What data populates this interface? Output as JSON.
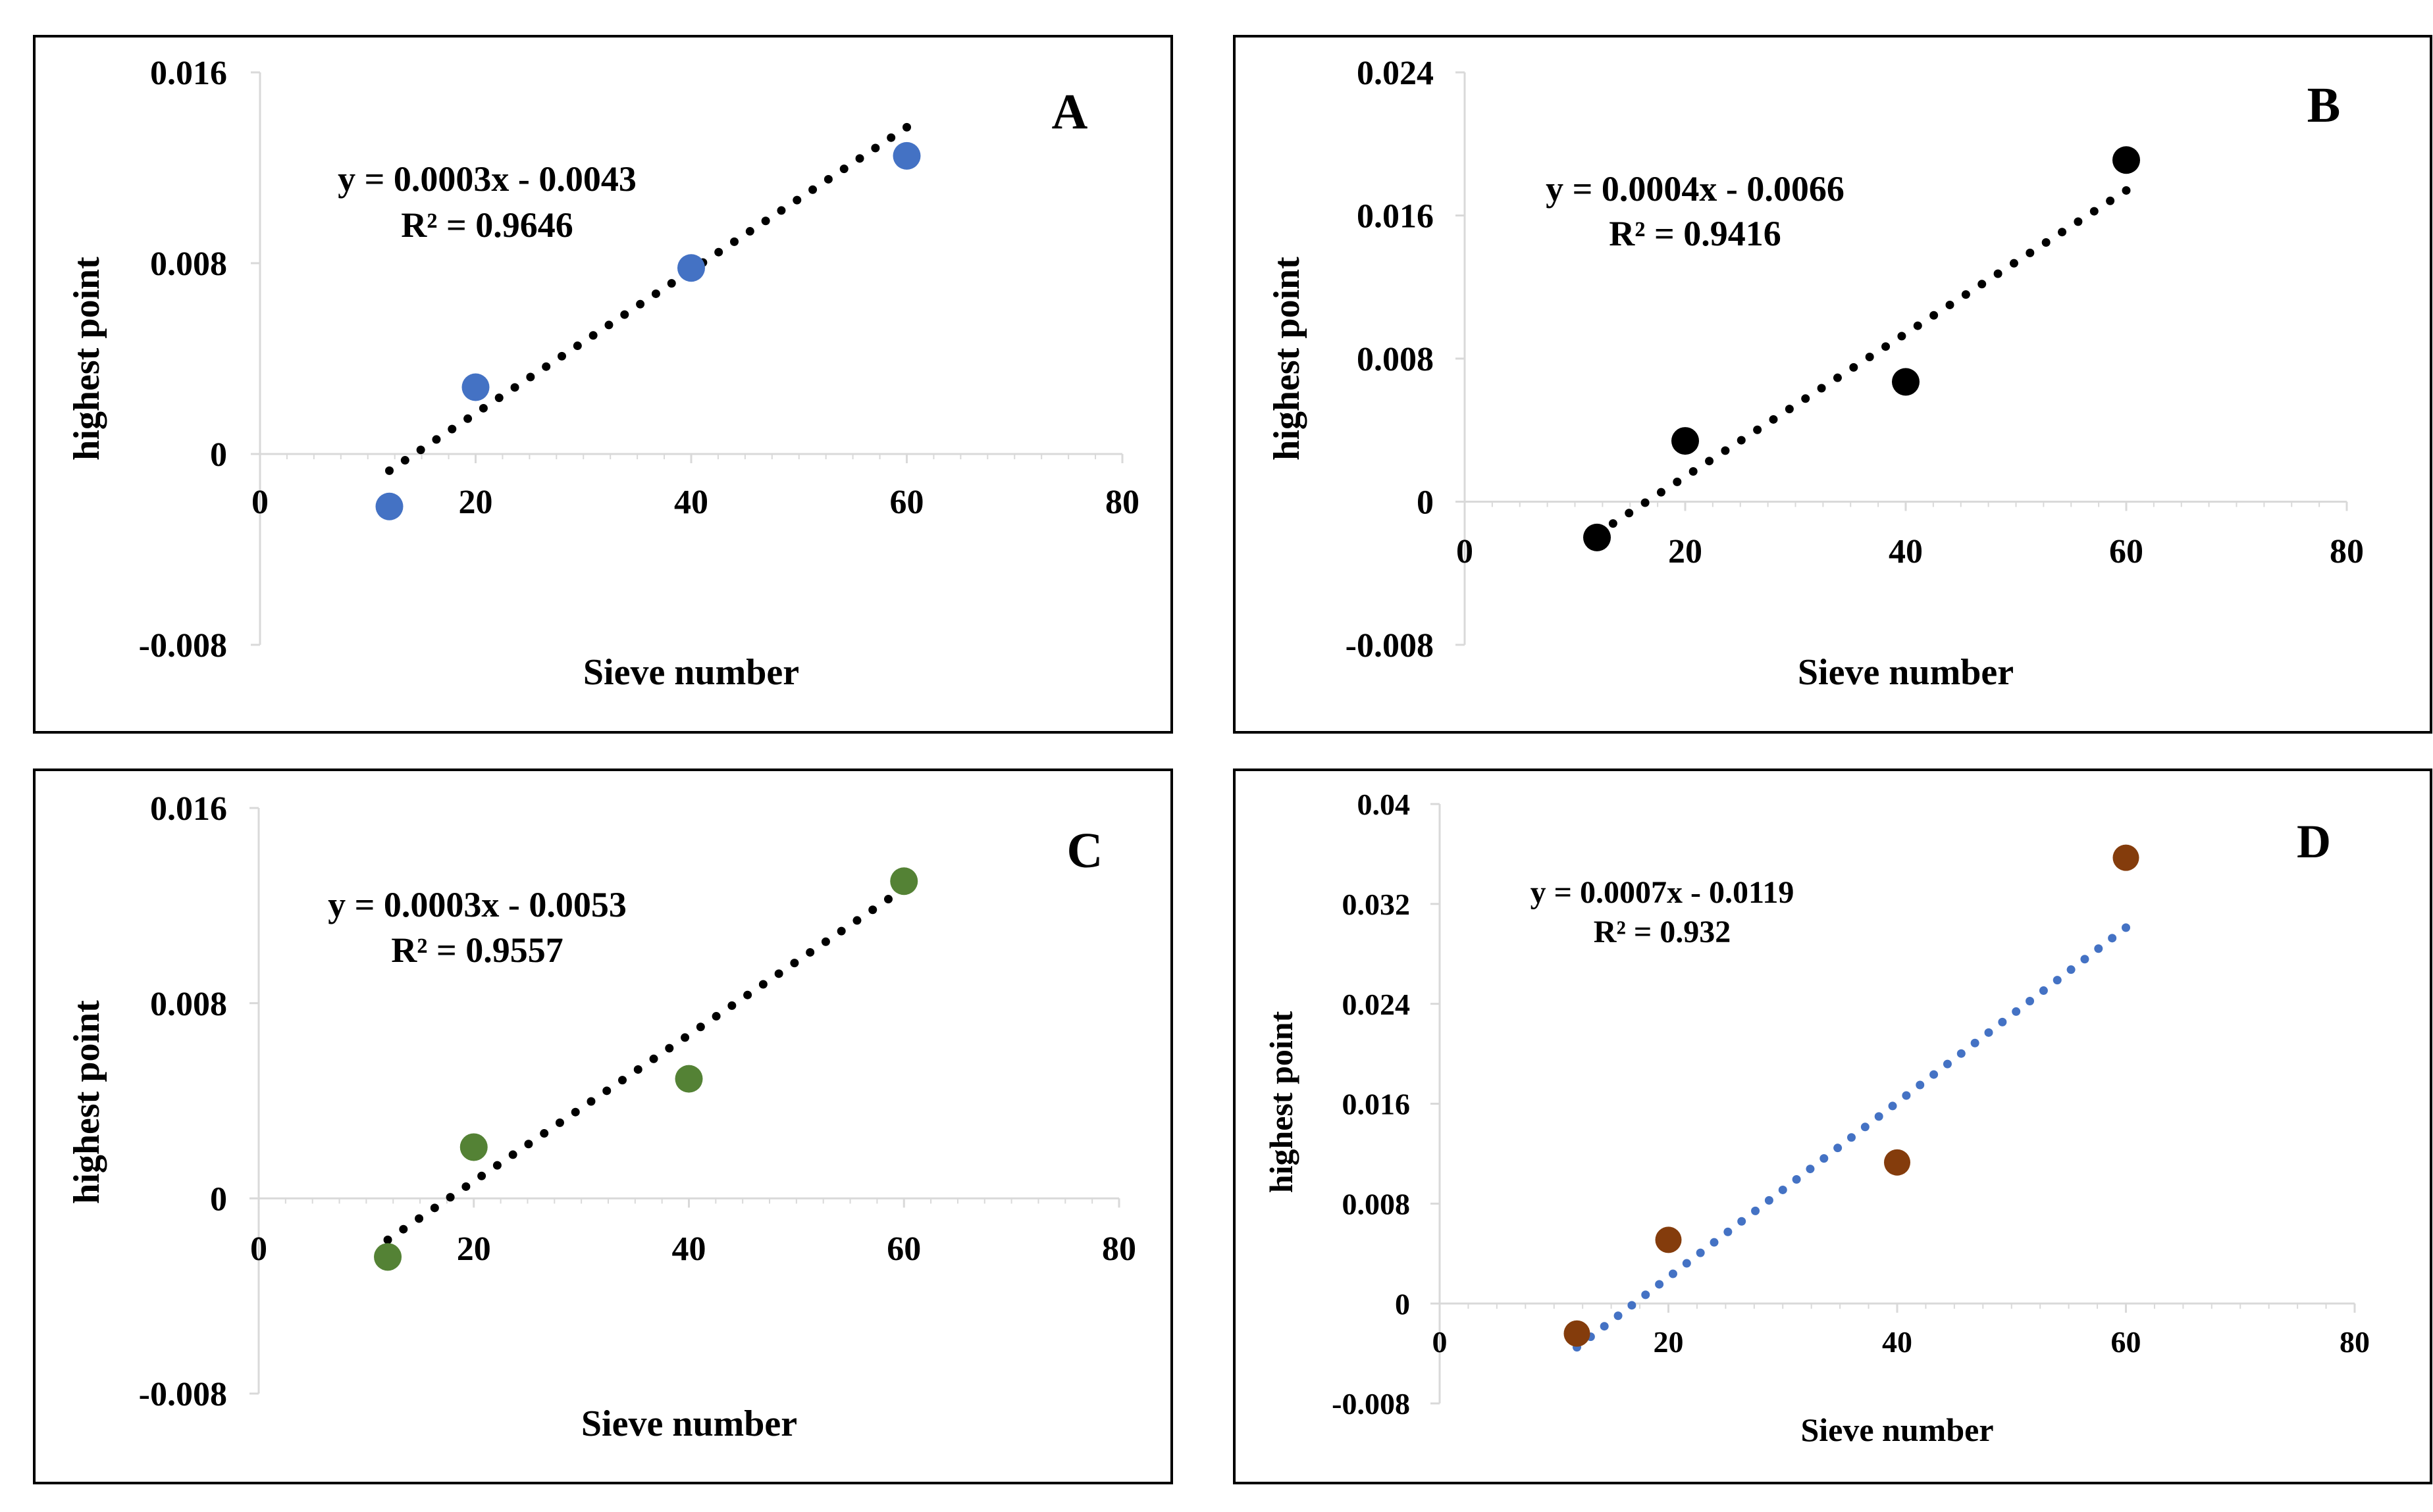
{
  "chart_data": [
    {
      "type": "scatter",
      "panel_label": "A",
      "xlabel": "Sieve number",
      "ylabel": "highest point",
      "xlim": [
        0,
        80
      ],
      "ylim": [
        -0.008,
        0.016
      ],
      "xticks": [
        "0",
        "20",
        "40",
        "60",
        "80"
      ],
      "yticks": [
        "0.016",
        "0.008",
        "0",
        "-0.008"
      ],
      "ytick_values": [
        0.016,
        0.008,
        0,
        -0.008
      ],
      "x": [
        12,
        20,
        40,
        60
      ],
      "y": [
        -0.0022,
        0.0028,
        0.0078,
        0.0125
      ],
      "marker_color": "#4472c4",
      "trendline": {
        "slope": 0.0003,
        "intercept": -0.0043,
        "x_range": [
          12,
          60
        ],
        "color": "#000000"
      },
      "equation": "y = 0.0003x - 0.0043",
      "r_squared": "R² = 0.9646",
      "grid": false
    },
    {
      "type": "scatter",
      "panel_label": "B",
      "xlabel": "Sieve number",
      "ylabel": "highest point",
      "xlim": [
        0,
        80
      ],
      "ylim": [
        -0.008,
        0.024
      ],
      "xticks": [
        "0",
        "20",
        "40",
        "60",
        "80"
      ],
      "yticks": [
        "0.024",
        "0.016",
        "0.008",
        "0",
        "-0.008"
      ],
      "ytick_values": [
        0.024,
        0.016,
        0.008,
        0,
        -0.008
      ],
      "x": [
        12,
        20,
        40,
        60
      ],
      "y": [
        -0.002,
        0.0034,
        0.0067,
        0.0191
      ],
      "marker_color": "#000000",
      "trendline": {
        "slope": 0.0004,
        "intercept": -0.0066,
        "x_range": [
          12,
          60
        ],
        "color": "#000000"
      },
      "equation": "y = 0.0004x - 0.0066",
      "r_squared": "R² = 0.9416",
      "grid": false
    },
    {
      "type": "scatter",
      "panel_label": "C",
      "xlabel": "Sieve number",
      "ylabel": "highest point",
      "xlim": [
        0,
        80
      ],
      "ylim": [
        -0.008,
        0.016
      ],
      "xticks": [
        "0",
        "20",
        "40",
        "60",
        "80"
      ],
      "yticks": [
        "0.016",
        "0.008",
        "0",
        "-0.008"
      ],
      "ytick_values": [
        0.016,
        0.008,
        0,
        -0.008
      ],
      "x": [
        12,
        20,
        40,
        60
      ],
      "y": [
        -0.0024,
        0.0021,
        0.0049,
        0.013
      ],
      "marker_color": "#548235",
      "trendline": {
        "slope": 0.0003,
        "intercept": -0.0053,
        "x_range": [
          12,
          60
        ],
        "color": "#000000"
      },
      "equation": "y = 0.0003x - 0.0053",
      "r_squared": "R² = 0.9557",
      "grid": false
    },
    {
      "type": "scatter",
      "panel_label": "D",
      "xlabel": "Sieve number",
      "ylabel": "highest point",
      "xlim": [
        0,
        80
      ],
      "ylim": [
        -0.008,
        0.04
      ],
      "xticks": [
        "0",
        "20",
        "40",
        "60",
        "80"
      ],
      "yticks": [
        "0.04",
        "0.032",
        "0.024",
        "0.016",
        "0.008",
        "0",
        "-0.008"
      ],
      "ytick_values": [
        0.04,
        0.032,
        0.024,
        0.016,
        0.008,
        0,
        -0.008
      ],
      "x": [
        12,
        20,
        40,
        60
      ],
      "y": [
        -0.0024,
        0.0051,
        0.0113,
        0.0357
      ],
      "marker_color": "#843c0c",
      "trendline": {
        "slope": 0.0007,
        "intercept": -0.0119,
        "x_range": [
          12,
          60
        ],
        "color": "#4472c4"
      },
      "equation": "y = 0.0007x - 0.0119",
      "r_squared": "R² = 0.932",
      "grid": false
    }
  ]
}
